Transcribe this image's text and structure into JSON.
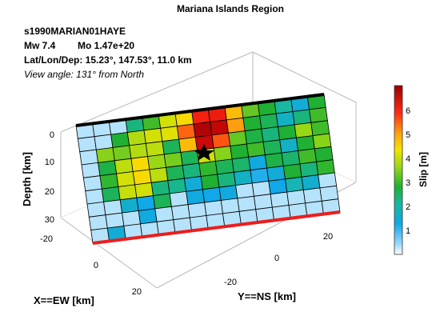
{
  "chart_data": {
    "type": "heatmap",
    "title": "Mariana Islands Region",
    "event_id": "s1990MARIAN01HAYE",
    "info_mw": "Mw 7.4",
    "info_mo": "Mo 1.47e+20",
    "info_location": "Lat/Lon/Dep: 15.23°, 147.53°, 11.0 km",
    "info_view": "View angle: 131° from North",
    "zlabel": "Depth [km]",
    "xlabel": "X==EW [km]",
    "ylabel": "Y==NS [km]",
    "depth_ticks": [
      "0",
      "10",
      "20",
      "30"
    ],
    "ew_ticks": [
      "-20",
      "0",
      "20"
    ],
    "ns_ticks": [
      "-20",
      "0",
      "20"
    ],
    "colorbar": {
      "label": "Slip [m]",
      "ticks": [
        "1",
        "2",
        "3",
        "4",
        "5",
        "6"
      ],
      "range": [
        0,
        7
      ],
      "colormap": "jet"
    },
    "grid_rows": 9,
    "grid_cols": 15,
    "slip": [
      [
        0.3,
        0.3,
        0.3,
        2.2,
        2.8,
        3.8,
        4.2,
        5.8,
        5.9,
        4.5,
        3.0,
        2.6,
        2.0,
        1.4,
        2.6
      ],
      [
        0.3,
        0.3,
        2.6,
        3.5,
        3.8,
        3.9,
        5.2,
        6.7,
        6.5,
        4.8,
        2.6,
        2.4,
        1.6,
        2.2,
        2.8
      ],
      [
        0.3,
        3.2,
        3.1,
        3.5,
        3.6,
        2.4,
        4.5,
        6.4,
        5.3,
        3.0,
        2.5,
        2.2,
        2.6,
        3.3,
        2.8
      ],
      [
        0.3,
        2.5,
        3.6,
        4.2,
        3.3,
        3.1,
        2.4,
        3.8,
        3.2,
        2.6,
        2.8,
        2.4,
        1.6,
        2.6,
        3.2
      ],
      [
        0.3,
        2.7,
        3.8,
        4.2,
        3.6,
        2.4,
        2.2,
        2.7,
        2.4,
        2.3,
        1.3,
        2.5,
        2.3,
        2.8,
        2.6
      ],
      [
        0.3,
        2.4,
        3.7,
        3.8,
        2.2,
        2.1,
        1.4,
        2.6,
        2.2,
        1.6,
        1.1,
        1.4,
        2.6,
        2.2,
        2.7
      ],
      [
        0.3,
        0.3,
        1.5,
        1.2,
        2.4,
        0.3,
        1.3,
        1.2,
        1.3,
        0.3,
        0.3,
        1.2,
        1.8,
        1.5,
        0.3
      ],
      [
        0.3,
        0.3,
        0.3,
        1.3,
        0.3,
        0.3,
        0.3,
        0.3,
        0.3,
        0.3,
        0.3,
        0.3,
        0.3,
        0.3,
        0.3
      ],
      [
        0.3,
        1.4,
        0.3,
        0.3,
        0.3,
        0.3,
        0.3,
        0.3,
        0.3,
        0.3,
        0.3,
        0.3,
        0.3,
        0.3,
        0.3
      ]
    ],
    "epicenter": {
      "row": 2,
      "col": 7
    },
    "top_edge_color": "#000000",
    "bottom_edge_color": "#ee1c1c"
  }
}
